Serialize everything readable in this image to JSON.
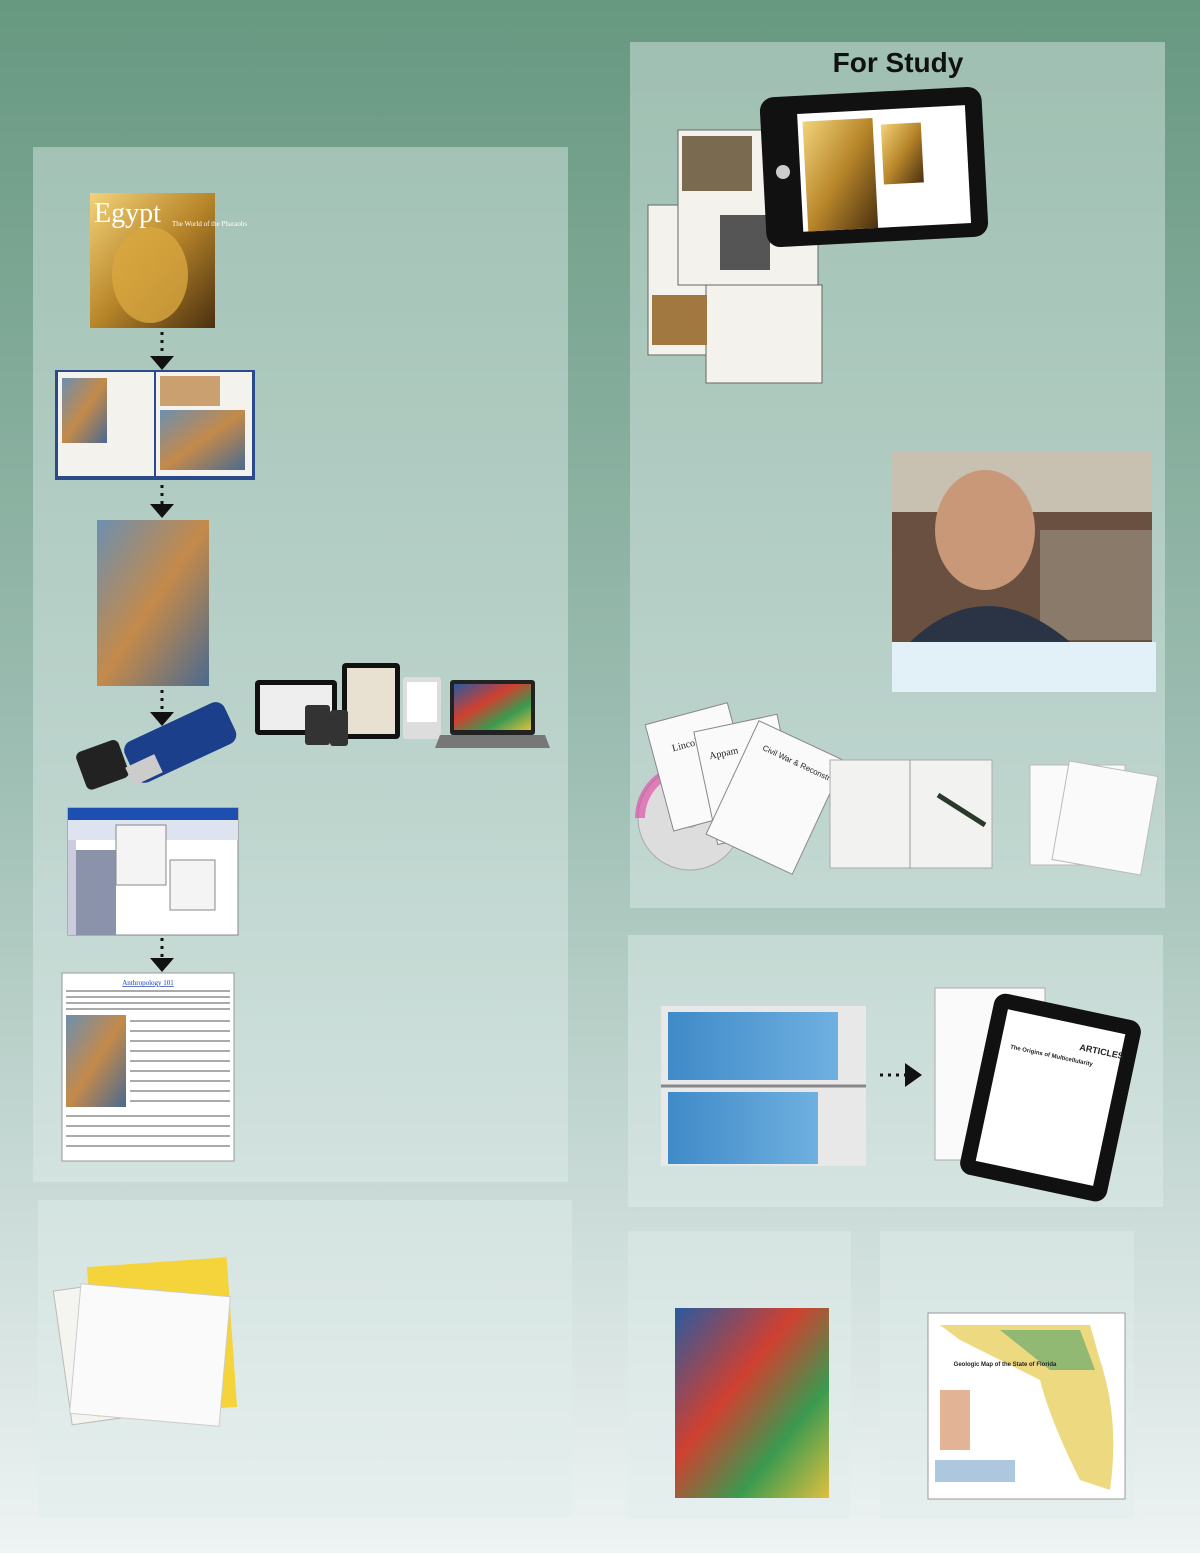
{
  "header": {
    "title": "For Study"
  },
  "images": {
    "book_cover": {
      "title": "Egypt",
      "subtitle": "The World of the Pharaohs"
    },
    "document": {
      "title": "Anthropology 101"
    },
    "booklets": [
      "Lincoln",
      "Appam",
      "Civil War & Reconstruction"
    ],
    "journal": {
      "title": "ARTICLES",
      "article": "The Origins of Multicellularity"
    },
    "map": {
      "title": "Geologic Map of the State of Florida"
    }
  }
}
